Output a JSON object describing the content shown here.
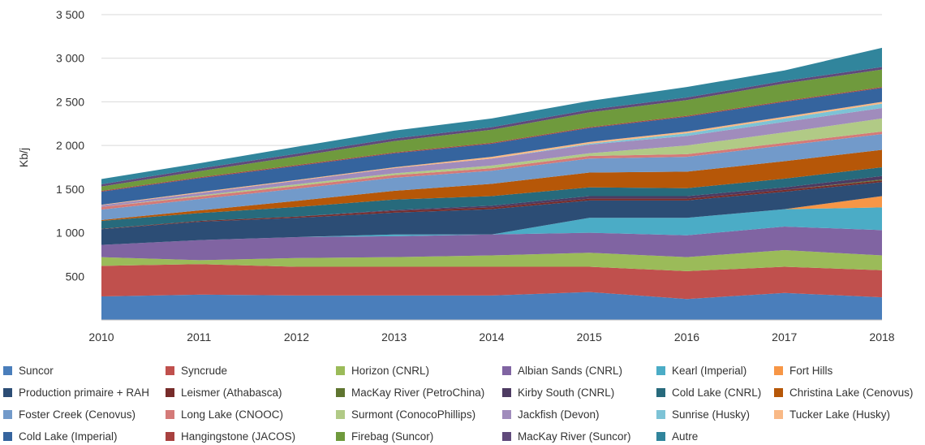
{
  "chart_data": {
    "type": "area",
    "stacked": true,
    "ylabel": "Kb/j",
    "xlabel": "",
    "x": [
      2010,
      2011,
      2012,
      2013,
      2014,
      2015,
      2016,
      2017,
      2018
    ],
    "ylim": [
      0,
      3500
    ],
    "yticks": [
      500,
      1000,
      1500,
      2000,
      2500,
      3000,
      3500
    ],
    "ytick_labels": [
      "500",
      "1 000",
      "1 500",
      "2 000",
      "2 500",
      "3 000",
      "3 500"
    ],
    "xtick_labels": [
      "2010",
      "2011",
      "2012",
      "2013",
      "2014",
      "2015",
      "2016",
      "2017",
      "2018"
    ],
    "grid": true,
    "legend_position": "bottom",
    "series": [
      {
        "name": "Suncor",
        "color": "#4a7ebb",
        "values": [
          270,
          290,
          280,
          280,
          280,
          320,
          240,
          310,
          260
        ]
      },
      {
        "name": "Syncrude",
        "color": "#c0504d",
        "values": [
          350,
          350,
          330,
          330,
          330,
          290,
          320,
          300,
          310
        ]
      },
      {
        "name": "Horizon (CNRL)",
        "color": "#9bbb59",
        "values": [
          100,
          45,
          100,
          110,
          130,
          160,
          160,
          190,
          170
        ]
      },
      {
        "name": "Albian Sands (CNRL)",
        "color": "#8064a2",
        "values": [
          140,
          230,
          240,
          240,
          240,
          230,
          250,
          270,
          290
        ]
      },
      {
        "name": "Kearl (Imperial)",
        "color": "#4bacc6",
        "values": [
          0,
          0,
          0,
          20,
          0,
          170,
          200,
          200,
          260
        ]
      },
      {
        "name": "Fort Hills",
        "color": "#f79646",
        "values": [
          0,
          0,
          0,
          0,
          0,
          0,
          0,
          0,
          130
        ]
      },
      {
        "name": "Production primaire + RAH",
        "color": "#2c4d75",
        "values": [
          180,
          210,
          220,
          250,
          290,
          200,
          200,
          200,
          160
        ]
      },
      {
        "name": "Leismer (Athabasca)",
        "color": "#772c2a",
        "values": [
          5,
          10,
          15,
          20,
          20,
          20,
          20,
          20,
          20
        ]
      },
      {
        "name": "MacKay River (PetroChina)",
        "color": "#5f7530",
        "values": [
          0,
          0,
          0,
          0,
          0,
          0,
          0,
          0,
          10
        ]
      },
      {
        "name": "Kirby South (CNRL)",
        "color": "#4d3b62",
        "values": [
          0,
          0,
          0,
          10,
          20,
          30,
          30,
          30,
          40
        ]
      },
      {
        "name": "Cold Lake (CNRL)",
        "color": "#276a7c",
        "values": [
          90,
          90,
          110,
          120,
          110,
          100,
          90,
          100,
          100
        ]
      },
      {
        "name": "Christina Lake (Cenovus)",
        "color": "#b65708",
        "values": [
          10,
          30,
          70,
          100,
          140,
          170,
          190,
          200,
          200
        ]
      },
      {
        "name": "Foster Creek (Cenovus)",
        "color": "#729aca",
        "values": [
          120,
          130,
          140,
          150,
          150,
          160,
          170,
          180,
          180
        ]
      },
      {
        "name": "Long Lake (CNOOC)",
        "color": "#d47a78",
        "values": [
          30,
          30,
          30,
          30,
          30,
          30,
          30,
          30,
          30
        ]
      },
      {
        "name": "Surmont (ConocoPhillips)",
        "color": "#b1ca86",
        "values": [
          0,
          10,
          20,
          20,
          30,
          30,
          100,
          120,
          150
        ]
      },
      {
        "name": "Jackfish (Devon)",
        "color": "#a08cbc",
        "values": [
          20,
          30,
          40,
          60,
          80,
          100,
          110,
          120,
          120
        ]
      },
      {
        "name": "Sunrise (Husky)",
        "color": "#7dc3d6",
        "values": [
          0,
          0,
          0,
          0,
          0,
          10,
          30,
          40,
          50
        ]
      },
      {
        "name": "Tucker Lake (Husky)",
        "color": "#f9b986",
        "values": [
          5,
          10,
          10,
          10,
          20,
          20,
          20,
          20,
          20
        ]
      },
      {
        "name": "Cold Lake (Imperial)",
        "color": "#35649e",
        "values": [
          150,
          160,
          160,
          160,
          150,
          160,
          170,
          170,
          160
        ]
      },
      {
        "name": "Hangingstone (JACOS)",
        "color": "#a8413f",
        "values": [
          10,
          10,
          10,
          10,
          10,
          10,
          10,
          10,
          10
        ]
      },
      {
        "name": "Firebag (Suncor)",
        "color": "#6f9a3d",
        "values": [
          50,
          70,
          100,
          130,
          150,
          170,
          180,
          200,
          200
        ]
      },
      {
        "name": "MacKay River (Suncor)",
        "color": "#604a7b",
        "values": [
          25,
          30,
          30,
          30,
          30,
          30,
          30,
          30,
          30
        ]
      },
      {
        "name": "Autre",
        "color": "#31859c",
        "values": [
          60,
          60,
          80,
          90,
          100,
          100,
          120,
          120,
          220
        ]
      }
    ]
  }
}
